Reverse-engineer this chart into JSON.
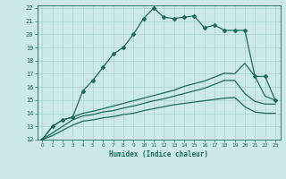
{
  "xlabel": "Humidex (Indice chaleur)",
  "xlim": [
    -0.5,
    23.5
  ],
  "ylim": [
    12,
    22.2
  ],
  "background_color": "#cce8e8",
  "grid_color": "#aad0d0",
  "line_color": "#1a6b5a",
  "series": {
    "main": [
      12,
      13,
      13.5,
      13.7,
      15.7,
      16.5,
      17.5,
      18.5,
      19.0,
      20.0,
      21.2,
      22.0,
      21.3,
      21.2,
      21.3,
      21.4,
      20.5,
      20.7,
      20.3,
      20.3,
      20.3,
      16.8,
      16.8,
      15.0
    ],
    "upper": [
      12,
      13,
      13.5,
      13.7,
      14.0,
      14.15,
      14.35,
      14.55,
      14.75,
      14.95,
      15.15,
      15.35,
      15.55,
      15.75,
      16.05,
      16.25,
      16.45,
      16.75,
      17.05,
      17.0,
      17.8,
      16.8,
      15.3,
      15.0
    ],
    "middle": [
      12,
      12.5,
      13.0,
      13.5,
      13.8,
      13.9,
      14.1,
      14.2,
      14.4,
      14.55,
      14.75,
      14.95,
      15.1,
      15.3,
      15.5,
      15.7,
      15.9,
      16.2,
      16.5,
      16.5,
      15.5,
      14.9,
      14.7,
      14.7
    ],
    "lower": [
      12,
      12.3,
      12.7,
      13.1,
      13.4,
      13.5,
      13.65,
      13.75,
      13.9,
      14.0,
      14.2,
      14.35,
      14.5,
      14.65,
      14.75,
      14.85,
      14.95,
      15.05,
      15.15,
      15.2,
      14.5,
      14.1,
      14.0,
      14.0
    ]
  },
  "xticks": [
    0,
    1,
    2,
    3,
    4,
    5,
    6,
    7,
    8,
    9,
    10,
    11,
    12,
    13,
    14,
    15,
    16,
    17,
    18,
    19,
    20,
    21,
    22,
    23
  ],
  "yticks": [
    12,
    13,
    14,
    15,
    16,
    17,
    18,
    19,
    20,
    21,
    22
  ],
  "marker": "D",
  "markersize": 2.0,
  "linewidth": 0.9
}
